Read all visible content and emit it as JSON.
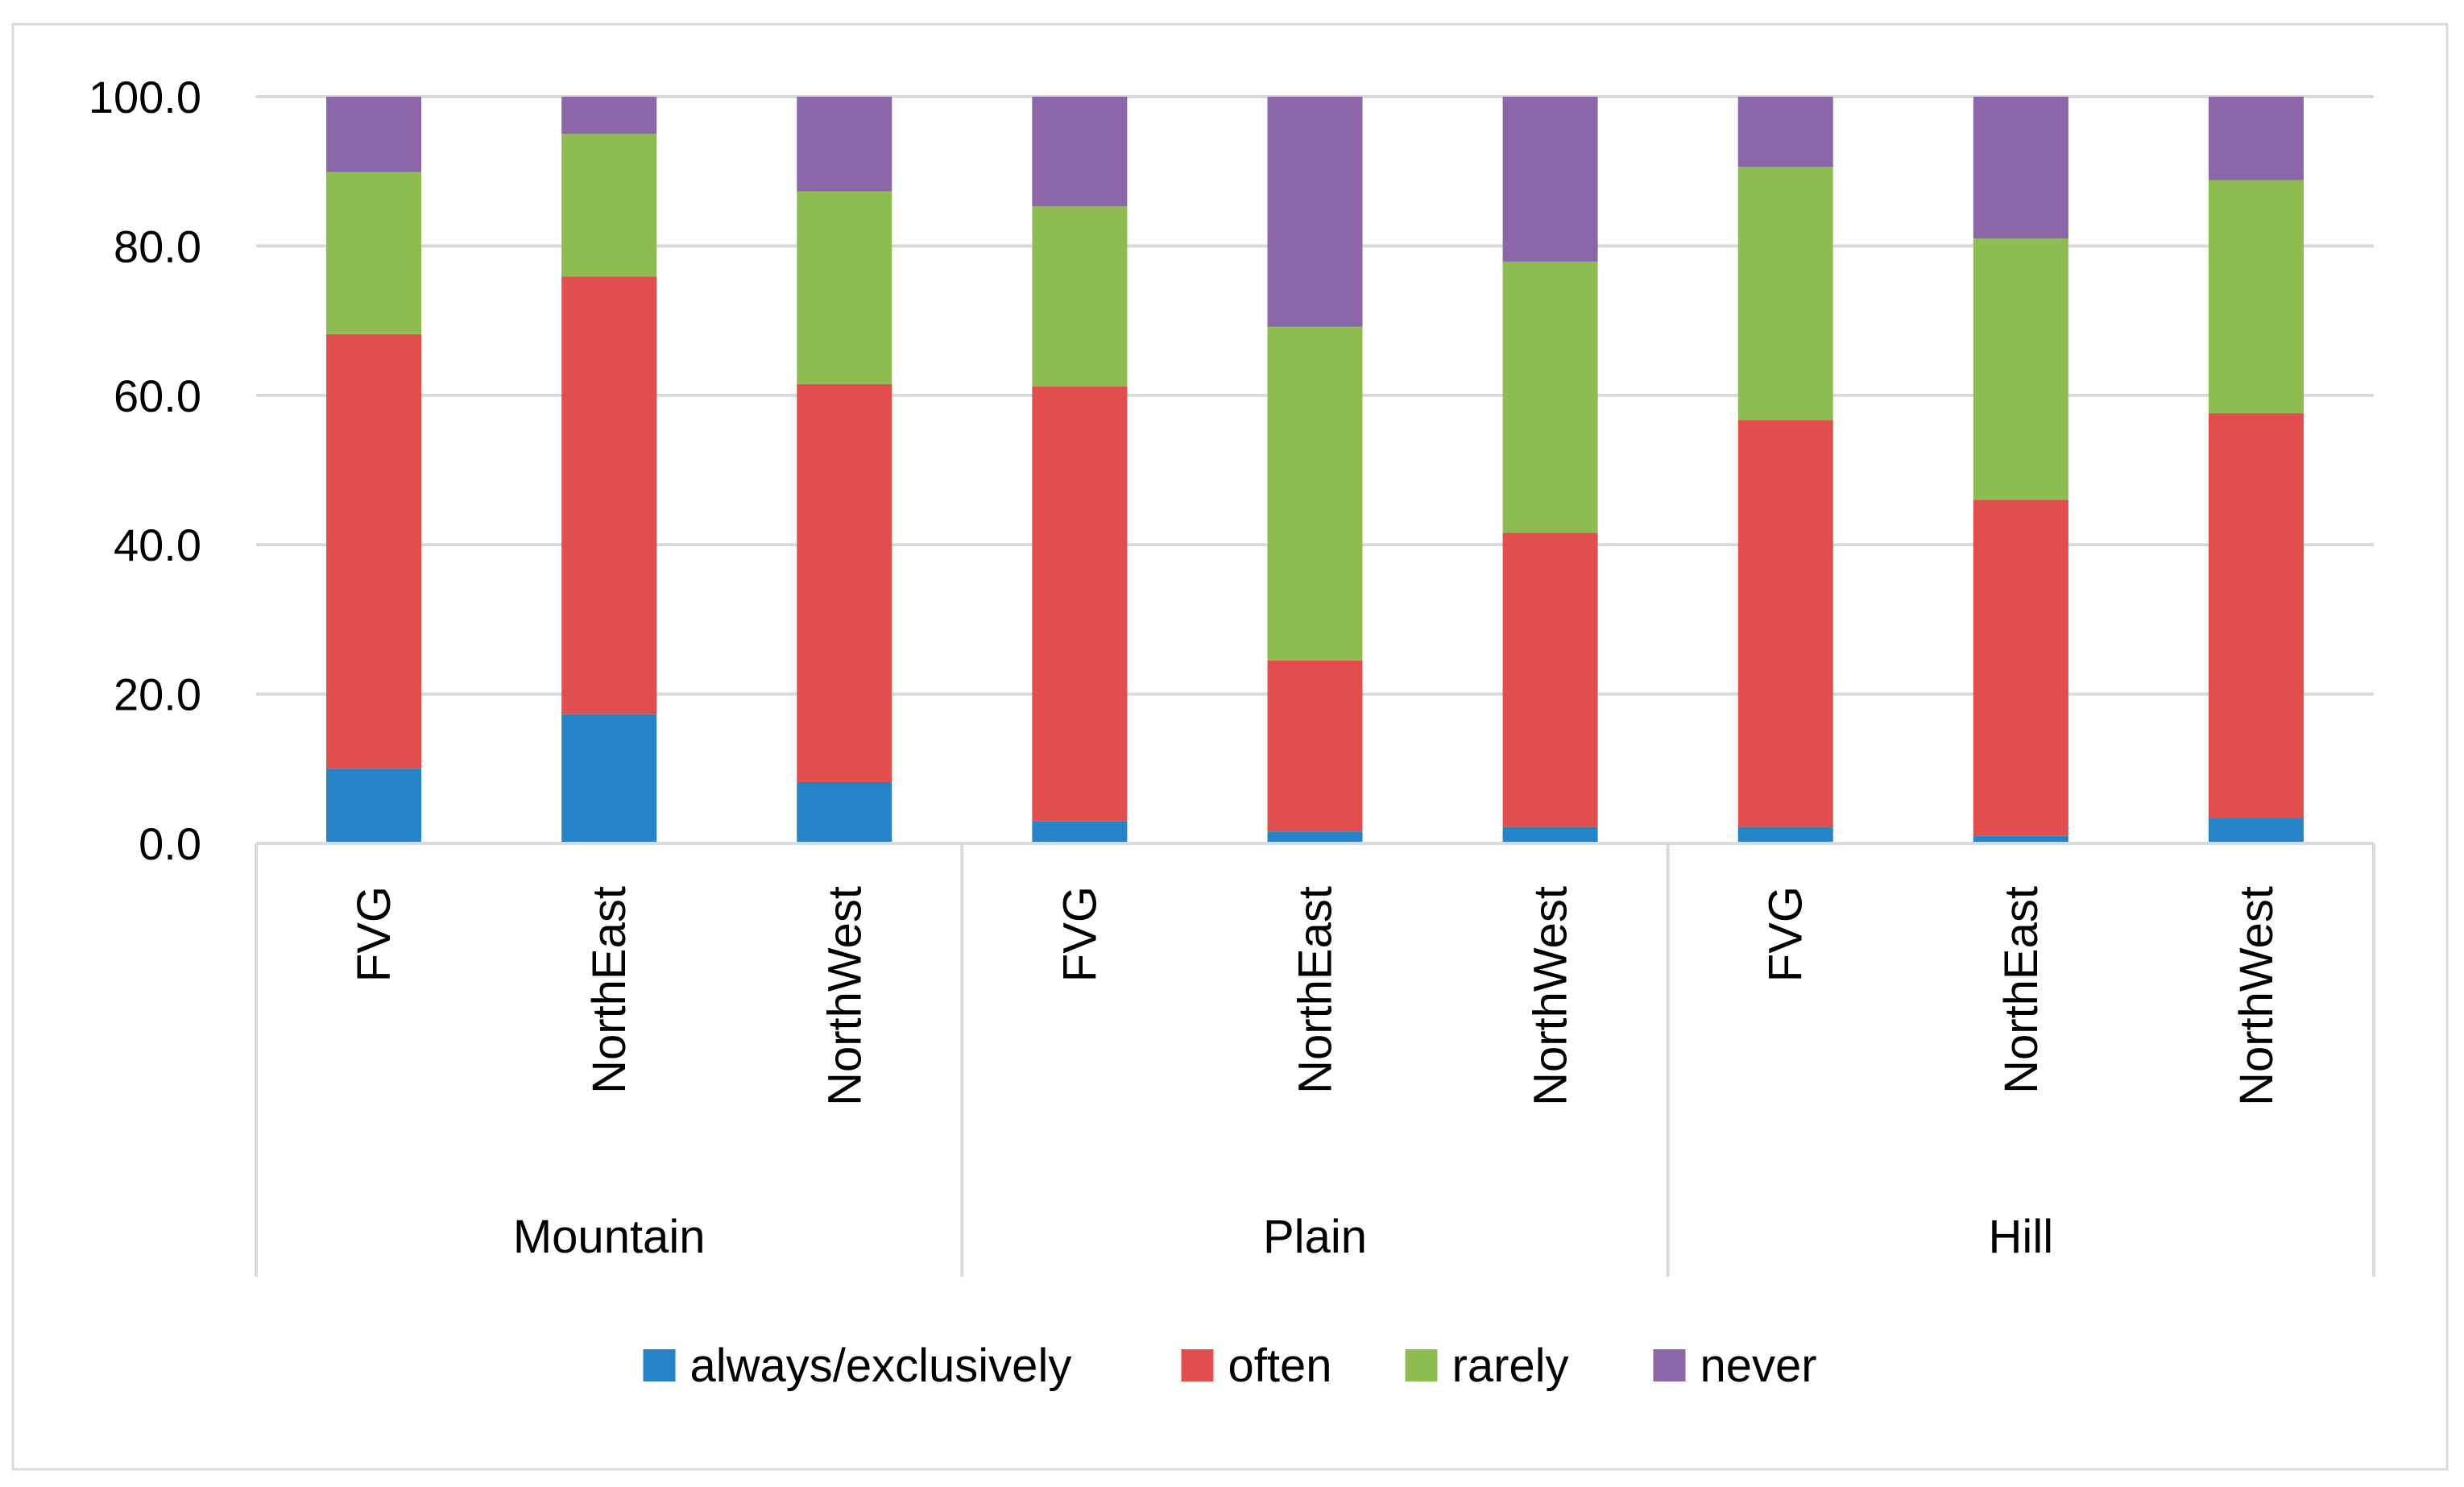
{
  "chart_data": {
    "type": "bar",
    "stacked": true,
    "title": "",
    "xlabel": "",
    "ylabel": "",
    "ylim": [
      0,
      100
    ],
    "yticks": [
      0,
      20,
      40,
      60,
      80,
      100
    ],
    "ytick_labels": [
      "0.0",
      "20.0",
      "40.0",
      "60.0",
      "80.0",
      "100.0"
    ],
    "gridlines": true,
    "legend_position": "bottom",
    "groups": [
      {
        "label": "Mountain",
        "categories": [
          "FVG",
          "NorthEast",
          "NorthWest"
        ]
      },
      {
        "label": "Plain",
        "categories": [
          "FVG",
          "NorthEast",
          "NorthWest"
        ]
      },
      {
        "label": "Hill",
        "categories": [
          "FVG",
          "NorthEast",
          "NorthWest"
        ]
      }
    ],
    "series": [
      {
        "name": "always/exclusively",
        "color": "#2683C6",
        "values": [
          10.0,
          17.3,
          8.2,
          3.0,
          1.6,
          2.2,
          2.2,
          1.0,
          3.4
        ]
      },
      {
        "name": "often",
        "color": "#E04F4D",
        "values": [
          58.2,
          58.6,
          53.3,
          58.2,
          22.9,
          39.4,
          54.5,
          45.0,
          54.2
        ]
      },
      {
        "name": "rarely",
        "color": "#8FBC50",
        "values": [
          21.7,
          19.1,
          25.8,
          24.1,
          44.7,
          36.3,
          33.9,
          35.0,
          31.2
        ]
      },
      {
        "name": "never",
        "color": "#8B66A8",
        "values": [
          10.1,
          5.0,
          12.7,
          14.7,
          30.8,
          22.1,
          9.4,
          19.0,
          11.2
        ]
      }
    ]
  }
}
